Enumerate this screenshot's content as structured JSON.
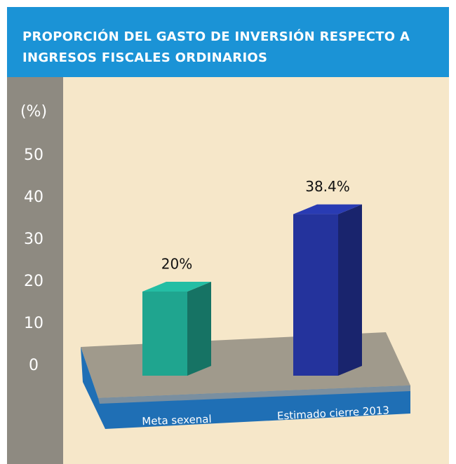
{
  "chart_data": {
    "type": "bar3d",
    "title": "PROPORCIÓN DEL GASTO DE INVERSIÓN RESPECTO A INGRESOS FISCALES ORDINARIOS",
    "ylabel": "(%)",
    "categories": [
      "Meta sexenal",
      "Estimado cierre 2013"
    ],
    "values": [
      20,
      38.4
    ],
    "value_labels": [
      "20%",
      "38.4%"
    ],
    "colors": [
      "#1fa58f",
      "#24339c"
    ],
    "ylim": [
      0,
      50
    ],
    "yticks": [
      0,
      10,
      20,
      30,
      40,
      50
    ]
  }
}
